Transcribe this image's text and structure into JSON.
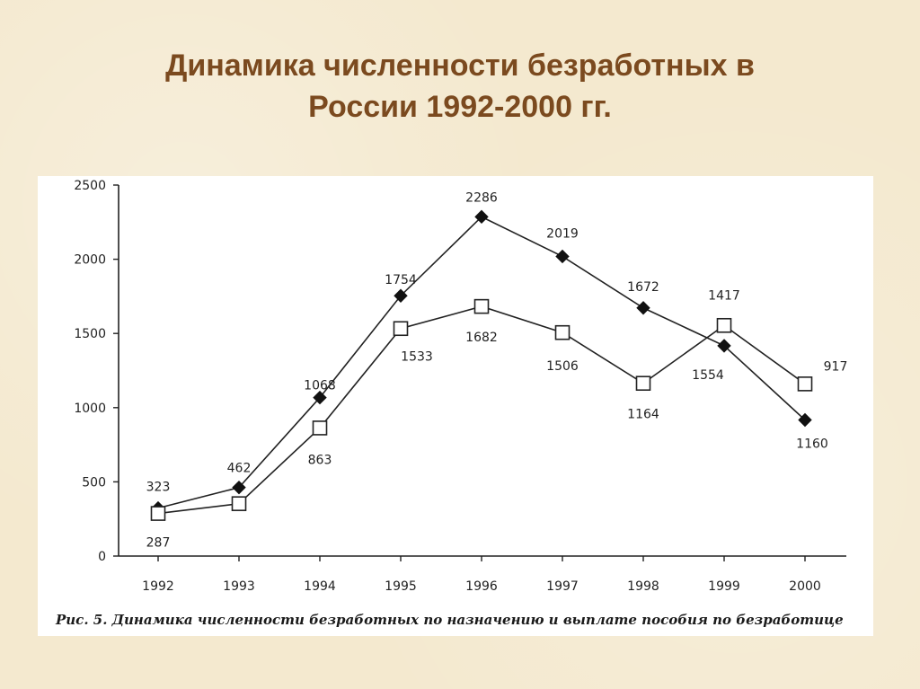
{
  "slide": {
    "title_line1": "Динамика численности безработных в",
    "title_line2": "России 1992-2000 гг."
  },
  "chart_data": {
    "type": "line",
    "categories": [
      "1992",
      "1993",
      "1994",
      "1995",
      "1996",
      "1997",
      "1998",
      "1999",
      "2000"
    ],
    "ylim": [
      0,
      2500
    ],
    "yticks": [
      "0",
      "500",
      "1000",
      "1500",
      "2000",
      "2500"
    ],
    "series": [
      {
        "marker": "filled-diamond",
        "values": [
          323,
          462,
          1068,
          1754,
          2286,
          2019,
          1672,
          1417,
          917
        ],
        "labels": [
          "323",
          "462",
          "1068",
          "1754",
          "2286",
          "2019",
          "1672",
          "1417",
          "917"
        ]
      },
      {
        "marker": "open-square",
        "values": [
          287,
          353,
          863,
          1533,
          1682,
          1506,
          1164,
          1554,
          1160
        ],
        "labels": [
          "287",
          "",
          "863",
          "1533",
          "1682",
          "1506",
          "1164",
          "1554",
          "1160"
        ]
      }
    ],
    "caption": "Рис. 5. Динамика численности безработных по назначению и выплате пособия по безработице",
    "grid": false,
    "legend": "none"
  }
}
